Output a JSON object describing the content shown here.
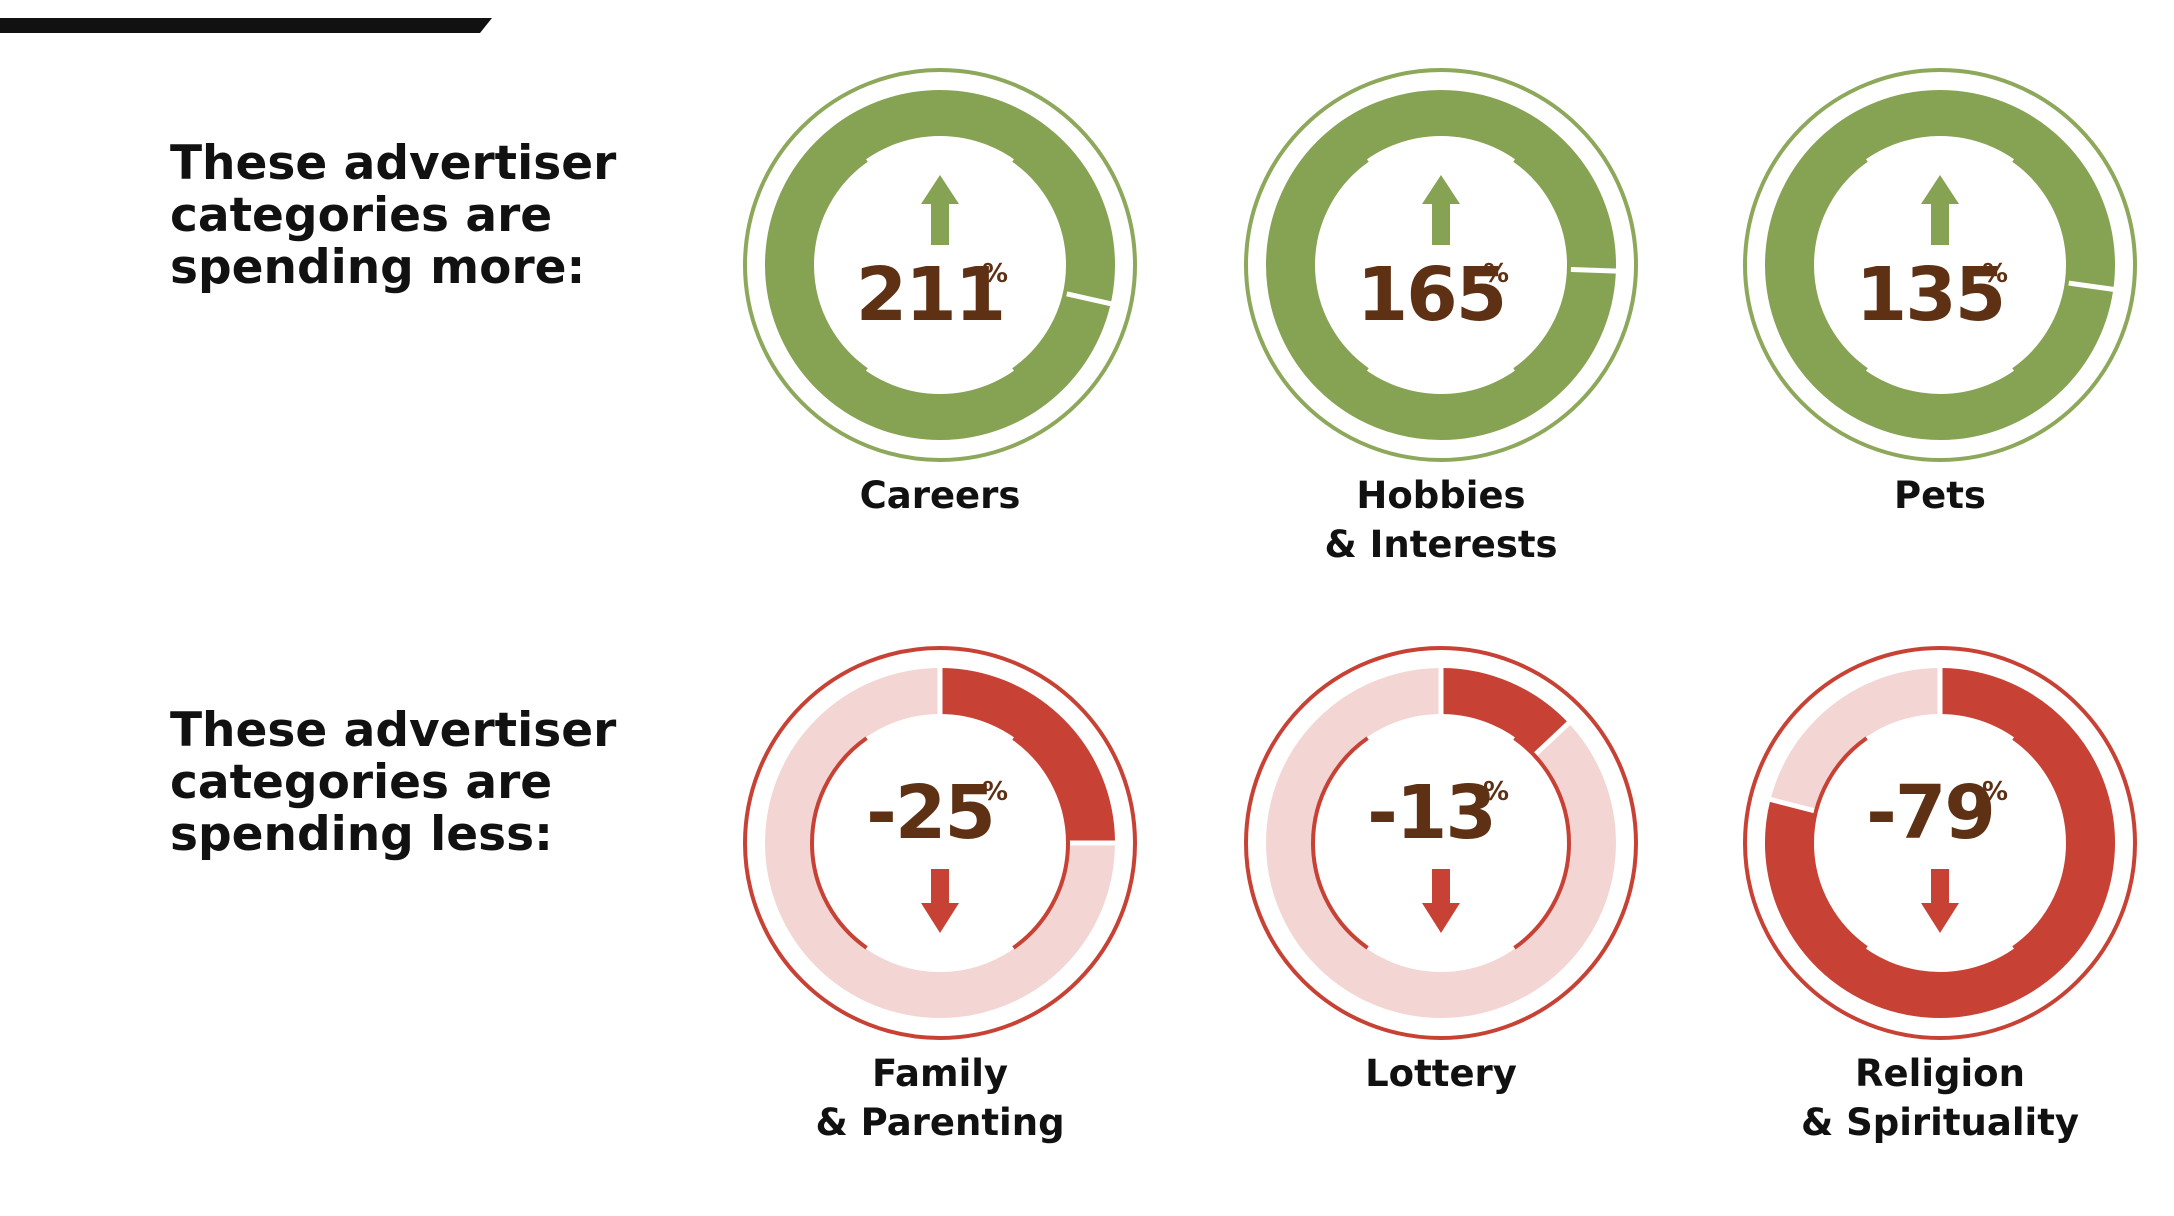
{
  "headings": {
    "spending_more": "These advertiser categories are spending more:",
    "spending_less": "These advertiser categories are spending less:"
  },
  "percent_sign": "%",
  "colors": {
    "increase": "#86A253",
    "increase_outline": "#8DA85A",
    "decrease": "#C74235",
    "decrease_track": "#F3D6D4",
    "value_text": "#5E3014",
    "label_text": "#111111",
    "top_bar": "#111111"
  },
  "chart_data": [
    {
      "type": "donut",
      "group": "spending more",
      "categories": [
        "Careers",
        "Hobbies & Interests",
        "Pets"
      ],
      "category_lines": [
        [
          "Careers"
        ],
        [
          "Hobbies",
          "& Interests"
        ],
        [
          "Pets"
        ]
      ],
      "values": [
        211,
        165,
        135
      ],
      "value_labels": [
        "211",
        "165",
        "135"
      ],
      "direction": "up"
    },
    {
      "type": "donut",
      "group": "spending less",
      "categories": [
        "Family & Parenting",
        "Lottery",
        "Religion & Spirituality"
      ],
      "category_lines": [
        [
          "Family",
          "& Parenting"
        ],
        [
          "Lottery"
        ],
        [
          "Religion",
          "& Spirituality"
        ]
      ],
      "values": [
        -25,
        -13,
        -79
      ],
      "value_labels": [
        "-25",
        "-13",
        "-79"
      ],
      "direction": "down"
    }
  ]
}
